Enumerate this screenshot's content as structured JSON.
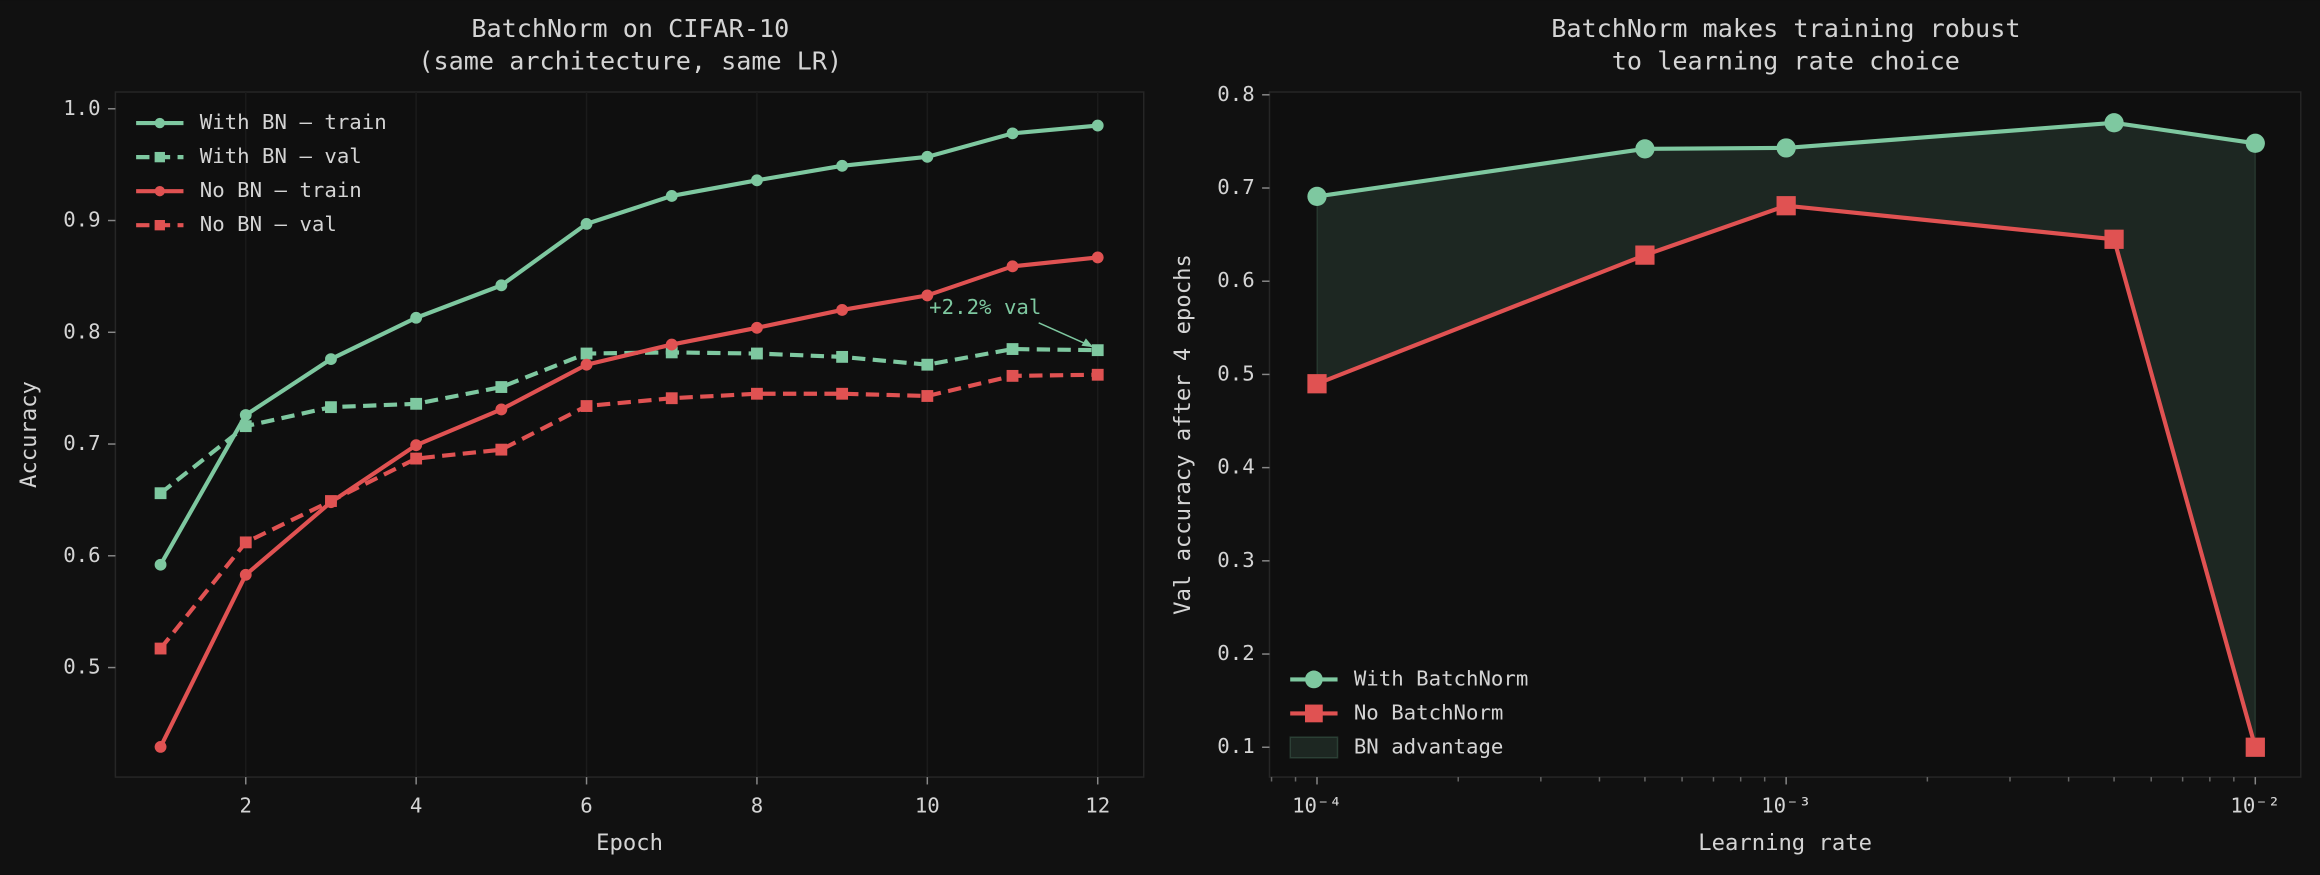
{
  "chart_data": [
    {
      "type": "line",
      "title": [
        "BatchNorm on CIFAR-10",
        "(same architecture, same LR)"
      ],
      "xlabel": "Epoch",
      "ylabel": "Accuracy",
      "x": [
        1,
        2,
        3,
        4,
        5,
        6,
        7,
        8,
        9,
        10,
        11,
        12
      ],
      "series": [
        {
          "name": "With BN — train",
          "color": "#7ec8a0",
          "marker": "circle",
          "dashed": false,
          "values": [
            0.592,
            0.726,
            0.776,
            0.813,
            0.842,
            0.897,
            0.922,
            0.936,
            0.949,
            0.957,
            0.978,
            0.985
          ]
        },
        {
          "name": "With BN — val",
          "color": "#7ec8a0",
          "marker": "square",
          "dashed": true,
          "values": [
            0.656,
            0.716,
            0.733,
            0.736,
            0.751,
            0.781,
            0.782,
            0.781,
            0.778,
            0.771,
            0.785,
            0.784
          ]
        },
        {
          "name": "No BN — train",
          "color": "#e05252",
          "marker": "circle",
          "dashed": false,
          "values": [
            0.429,
            0.583,
            0.648,
            0.699,
            0.731,
            0.771,
            0.789,
            0.804,
            0.82,
            0.833,
            0.859,
            0.867
          ]
        },
        {
          "name": "No BN — val",
          "color": "#e05252",
          "marker": "square",
          "dashed": true,
          "values": [
            0.517,
            0.612,
            0.649,
            0.687,
            0.695,
            0.734,
            0.741,
            0.745,
            0.745,
            0.743,
            0.761,
            0.762
          ]
        }
      ],
      "xlim": [
        0.47,
        12.54
      ],
      "ylim": [
        0.402,
        1.015
      ],
      "xticks": [
        2,
        4,
        6,
        8,
        10,
        12
      ],
      "yticks": [
        0.5,
        0.6,
        0.7,
        0.8,
        0.9,
        {
          "value": 1,
          "label": "1.0"
        }
      ],
      "grid": true,
      "legend": "upper left",
      "annotation": {
        "text": "+2.2% val",
        "color": "#7ec8a0"
      }
    },
    {
      "type": "line",
      "title": [
        "BatchNorm makes training robust",
        "to learning rate choice"
      ],
      "xlabel": "Learning rate",
      "ylabel": "Val accuracy after 4 epochs",
      "x": [
        0.0001,
        0.0005,
        0.001,
        0.005,
        0.01
      ],
      "xscale": "log",
      "series": [
        {
          "name": "With BatchNorm",
          "color": "#7ec8a0",
          "marker": "circle",
          "dashed": false,
          "values": [
            0.691,
            0.742,
            0.743,
            0.77,
            0.748
          ]
        },
        {
          "name": "No BatchNorm",
          "color": "#e05252",
          "marker": "square",
          "dashed": false,
          "values": [
            0.49,
            0.628,
            0.681,
            0.645,
            0.1
          ]
        }
      ],
      "fill_between": {
        "name": "BN advantage",
        "color": "#7ec8a0"
      },
      "xlim": [
        7.92e-05,
        0.0125
      ],
      "ylim": [
        0.068,
        0.803
      ],
      "xticks": [
        {
          "value": 0.0001,
          "label": "10⁻⁴"
        },
        {
          "value": 0.001,
          "label": "10⁻³"
        },
        {
          "value": 0.01,
          "label": "10⁻²"
        }
      ],
      "yticks": [
        0.1,
        0.2,
        0.3,
        0.4,
        0.5,
        0.6,
        0.7,
        0.8
      ],
      "grid": false,
      "legend": "lower left"
    }
  ]
}
